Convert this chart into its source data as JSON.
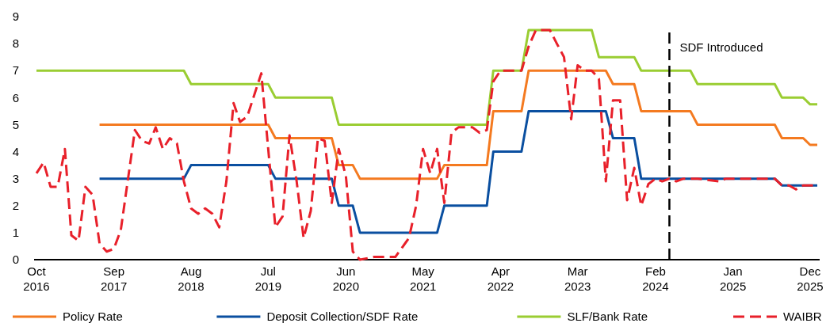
{
  "chart_data": {
    "type": "line",
    "xlim": [
      "2016-10",
      "2026-01"
    ],
    "ylim": [
      0,
      9
    ],
    "yticks": [
      0,
      1,
      2,
      3,
      4,
      5,
      6,
      7,
      8,
      9
    ],
    "xticks": [
      {
        "value": "2016-10",
        "label": "Oct 2016"
      },
      {
        "value": "2017-09",
        "label": "Sep 2017"
      },
      {
        "value": "2018-08",
        "label": "Aug 2018"
      },
      {
        "value": "2019-07",
        "label": "Jul 2019"
      },
      {
        "value": "2020-06",
        "label": "Jun 2020"
      },
      {
        "value": "2021-05",
        "label": "May 2021"
      },
      {
        "value": "2022-04",
        "label": "Apr 2022"
      },
      {
        "value": "2023-03",
        "label": "Mar 2023"
      },
      {
        "value": "2024-02",
        "label": "Feb 2024"
      },
      {
        "value": "2025-01",
        "label": "Jan 2025"
      },
      {
        "value": "2025-12",
        "label": "Dec 2025"
      }
    ],
    "grid": false,
    "legend": "bottom",
    "ref_lines": [
      {
        "axis": "x",
        "value": "2024-04",
        "label": "SDF Introduced",
        "color": "#000000",
        "line_style": "dashed"
      }
    ],
    "series": [
      {
        "name": "Policy Rate",
        "color": "#f47a20",
        "line_style": "solid",
        "x": [
          "2017-07",
          "2019-07",
          "2019-08",
          "2020-04",
          "2020-05",
          "2020-07",
          "2020-08",
          "2021-07",
          "2021-08",
          "2022-02",
          "2022-03",
          "2022-07",
          "2022-08",
          "2023-07",
          "2023-08",
          "2023-11",
          "2023-12",
          "2024-07",
          "2024-08",
          "2025-07",
          "2025-08",
          "2025-11",
          "2025-12",
          "2026-01"
        ],
        "values": [
          5,
          5,
          4.5,
          4.5,
          3.5,
          3.5,
          3,
          3,
          3.5,
          3.5,
          5.5,
          5.5,
          7,
          7,
          6.5,
          6.5,
          5.5,
          5.5,
          5,
          5,
          4.5,
          4.5,
          4.25,
          4.25
        ]
      },
      {
        "name": "Deposit Collection/SDF Rate",
        "color": "#0a4fa0",
        "line_style": "solid",
        "x": [
          "2017-07",
          "2018-07",
          "2018-08",
          "2019-07",
          "2019-08",
          "2020-04",
          "2020-05",
          "2020-07",
          "2020-08",
          "2021-07",
          "2021-08",
          "2022-02",
          "2022-03",
          "2022-07",
          "2022-08",
          "2023-07",
          "2023-08",
          "2023-11",
          "2023-12",
          "2025-07",
          "2025-08",
          "2026-01"
        ],
        "values": [
          3,
          3,
          3.5,
          3.5,
          3,
          3,
          2,
          2,
          1,
          1,
          2,
          2,
          4,
          4,
          5.5,
          5.5,
          4.5,
          4.5,
          3,
          3,
          2.75,
          2.75
        ]
      },
      {
        "name": "SLF/Bank Rate",
        "color": "#9acd32",
        "line_style": "solid",
        "x": [
          "2016-10",
          "2018-07",
          "2018-08",
          "2019-07",
          "2019-08",
          "2020-04",
          "2020-05",
          "2022-02",
          "2022-03",
          "2022-07",
          "2022-08",
          "2023-05",
          "2023-06",
          "2023-11",
          "2023-12",
          "2024-07",
          "2024-08",
          "2025-07",
          "2025-08",
          "2025-11",
          "2025-12",
          "2026-01"
        ],
        "values": [
          7,
          7,
          6.5,
          6.5,
          6,
          6,
          5,
          5,
          7,
          7,
          8.5,
          8.5,
          7.5,
          7.5,
          7,
          7,
          6.5,
          6.5,
          6,
          6,
          5.75,
          5.75
        ]
      },
      {
        "name": "WAIBR",
        "color": "#e8202a",
        "line_style": "dashed",
        "x": [
          "2016-10",
          "2016-11",
          "2016-12",
          "2017-01",
          "2017-02",
          "2017-03",
          "2017-04",
          "2017-05",
          "2017-06",
          "2017-07",
          "2017-08",
          "2017-09",
          "2017-10",
          "2017-12",
          "2018-01",
          "2018-02",
          "2018-03",
          "2018-04",
          "2018-05",
          "2018-06",
          "2018-07",
          "2018-08",
          "2018-09",
          "2018-10",
          "2018-11",
          "2018-12",
          "2019-01",
          "2019-02",
          "2019-03",
          "2019-04",
          "2019-06",
          "2019-08",
          "2019-09",
          "2019-10",
          "2019-11",
          "2019-12",
          "2020-01",
          "2020-02",
          "2020-03",
          "2020-04",
          "2020-05",
          "2020-06",
          "2020-07",
          "2020-08",
          "2020-10",
          "2020-12",
          "2021-01",
          "2021-03",
          "2021-04",
          "2021-05",
          "2021-06",
          "2021-07",
          "2021-08",
          "2021-09",
          "2021-10",
          "2021-12",
          "2022-01",
          "2022-02",
          "2022-03",
          "2022-04",
          "2022-07",
          "2022-08",
          "2022-09",
          "2022-11",
          "2022-12",
          "2023-01",
          "2023-02",
          "2023-03",
          "2023-04",
          "2023-05",
          "2023-06",
          "2023-07",
          "2023-08",
          "2023-09",
          "2023-10",
          "2023-11",
          "2023-12",
          "2024-01",
          "2024-02",
          "2024-03",
          "2024-04",
          "2024-05",
          "2024-06",
          "2024-08",
          "2024-11",
          "2024-12",
          "2025-03",
          "2025-07",
          "2025-08",
          "2025-09",
          "2025-10",
          "2025-11",
          "2026-01"
        ],
        "values": [
          3.2,
          3.6,
          2.7,
          2.7,
          4.1,
          0.9,
          0.7,
          2.7,
          2.4,
          0.6,
          0.3,
          0.4,
          1.1,
          4.8,
          4.4,
          4.3,
          4.9,
          4.1,
          4.5,
          4.3,
          2.9,
          1.9,
          1.7,
          1.9,
          1.7,
          1.2,
          2.9,
          5.8,
          5.1,
          5.3,
          6.9,
          1.2,
          1.6,
          4.6,
          2.9,
          0.8,
          1.8,
          4.5,
          4.4,
          2.1,
          4.1,
          3.1,
          0.3,
          0,
          0.1,
          0.1,
          0.1,
          0.8,
          2,
          4.1,
          3.2,
          4.1,
          2.1,
          4.7,
          4.9,
          4.9,
          4.7,
          4.8,
          6.6,
          7,
          7,
          7.9,
          8.5,
          8.5,
          8,
          7.5,
          5.2,
          7.2,
          7,
          7,
          6.7,
          2.9,
          5.9,
          5.9,
          2.2,
          3.4,
          2,
          2.8,
          3,
          2.9,
          3,
          2.9,
          3,
          3,
          2.9,
          3,
          3,
          3,
          2.75,
          2.75,
          2.6,
          2.75,
          2.75
        ]
      }
    ]
  }
}
